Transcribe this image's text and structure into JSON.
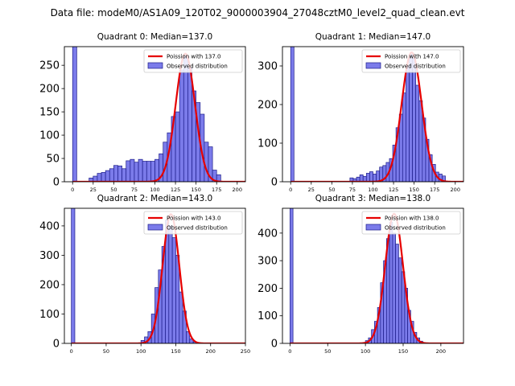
{
  "suptitle": "Data file: modeM0/AS1A09_120T02_9000003904_27048cztM0_level2_quad_clean.evt",
  "colors": {
    "bar_fill": "#7b7bea",
    "bar_edge": "#1c1c8a",
    "poisson_line": "#e60000"
  },
  "chart_data": [
    {
      "type": "bar",
      "title": "Quadrant 0: Median=137.0",
      "legend": [
        "Poission with 137.0",
        "Observed distribution"
      ],
      "legend_position": "top-right",
      "xlim": [
        -10,
        210
      ],
      "ylim": [
        0,
        290
      ],
      "xticks": [
        0,
        25,
        50,
        75,
        100,
        125,
        150,
        175,
        200
      ],
      "yticks": [
        0,
        50,
        100,
        150,
        200,
        250
      ],
      "bin_width": 5,
      "bins_left": [
        0,
        20,
        25,
        30,
        35,
        40,
        45,
        50,
        55,
        60,
        65,
        70,
        75,
        80,
        85,
        90,
        95,
        100,
        105,
        110,
        115,
        120,
        125,
        130,
        135,
        140,
        145,
        150,
        155,
        160,
        165,
        170,
        175
      ],
      "counts": [
        290,
        8,
        12,
        18,
        20,
        24,
        28,
        35,
        34,
        28,
        45,
        48,
        42,
        48,
        44,
        44,
        44,
        48,
        60,
        85,
        105,
        140,
        150,
        240,
        270,
        245,
        195,
        170,
        145,
        85,
        75,
        25,
        15
      ],
      "poisson_mean": 137.0,
      "poisson_peak": 275
    },
    {
      "type": "bar",
      "title": "Quadrant 1: Median=147.0",
      "legend": [
        "Poission with 147.0",
        "Observed distribution"
      ],
      "legend_position": "top-right",
      "xlim": [
        -10,
        210
      ],
      "ylim": [
        0,
        350
      ],
      "xticks": [
        0,
        25,
        50,
        75,
        100,
        125,
        150,
        175,
        200
      ],
      "yticks": [
        0,
        100,
        200,
        300
      ],
      "bin_width": 4,
      "bins_left": [
        0,
        72,
        76,
        80,
        84,
        88,
        92,
        96,
        100,
        104,
        108,
        112,
        116,
        120,
        124,
        128,
        132,
        136,
        140,
        144,
        148,
        152,
        156,
        160,
        164,
        168,
        172,
        176,
        180,
        184
      ],
      "counts": [
        350,
        10,
        8,
        12,
        18,
        14,
        22,
        26,
        20,
        28,
        38,
        42,
        50,
        60,
        95,
        140,
        175,
        230,
        300,
        330,
        320,
        250,
        210,
        165,
        110,
        70,
        45,
        25,
        20,
        15
      ],
      "poisson_mean": 147.0,
      "poisson_peak": 335
    },
    {
      "type": "bar",
      "title": "Quadrant 2: Median=143.0",
      "legend": [
        "Poission with 143.0",
        "Observed distribution"
      ],
      "legend_position": "top-right",
      "xlim": [
        -10,
        250
      ],
      "ylim": [
        0,
        460
      ],
      "xticks": [
        0,
        50,
        100,
        150,
        200,
        250
      ],
      "yticks": [
        0,
        100,
        200,
        300,
        400
      ],
      "bin_width": 5,
      "bins_left": [
        0,
        100,
        105,
        110,
        115,
        120,
        125,
        130,
        135,
        140,
        145,
        150,
        155,
        160,
        165,
        170,
        175
      ],
      "counts": [
        460,
        10,
        22,
        40,
        100,
        190,
        250,
        330,
        420,
        400,
        360,
        300,
        175,
        110,
        40,
        15,
        5
      ],
      "poisson_mean": 143.0,
      "poisson_peak": 440
    },
    {
      "type": "bar",
      "title": "Quadrant 3: Median=138.0",
      "legend": [
        "Poission with 138.0",
        "Observed distribution"
      ],
      "legend_position": "top-right",
      "xlim": [
        -10,
        230
      ],
      "ylim": [
        0,
        490
      ],
      "xticks": [
        0,
        50,
        100,
        150,
        200
      ],
      "yticks": [
        0,
        100,
        200,
        300,
        400
      ],
      "bin_width": 4,
      "bins_left": [
        0,
        100,
        104,
        108,
        112,
        116,
        120,
        124,
        128,
        132,
        136,
        140,
        144,
        148,
        152,
        156,
        160,
        164,
        168,
        172
      ],
      "counts": [
        490,
        10,
        20,
        50,
        80,
        130,
        220,
        300,
        380,
        440,
        400,
        360,
        310,
        260,
        200,
        120,
        80,
        40,
        20,
        8
      ],
      "poisson_mean": 138.0,
      "poisson_peak": 470
    }
  ]
}
